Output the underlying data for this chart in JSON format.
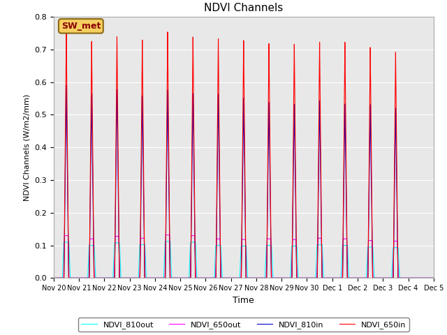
{
  "title": "NDVI Channels",
  "ylabel": "NDVI Channels (W/m2/mm)",
  "xlabel": "Time",
  "ylim": [
    0.0,
    0.8
  ],
  "bg_color": "#e8e8e8",
  "grid_color": "white",
  "annotation_text": "SW_met",
  "annotation_bg": "#f5d060",
  "annotation_border": "#8B6914",
  "series": {
    "NDVI_650in": {
      "color": "#ff0000",
      "linewidth": 0.8
    },
    "NDVI_810in": {
      "color": "#0000cc",
      "linewidth": 0.8
    },
    "NDVI_650out": {
      "color": "#ff00ff",
      "linewidth": 0.8
    },
    "NDVI_810out": {
      "color": "#00ffff",
      "linewidth": 0.8
    }
  },
  "peak_650in": [
    0.755,
    0.725,
    0.74,
    0.73,
    0.755,
    0.74,
    0.735,
    0.73,
    0.72,
    0.718,
    0.724,
    0.723,
    0.707,
    0.692
  ],
  "peak_810in": [
    0.59,
    0.565,
    0.578,
    0.558,
    0.578,
    0.566,
    0.565,
    0.554,
    0.54,
    0.533,
    0.544,
    0.534,
    0.532,
    0.52
  ],
  "peak_650out": [
    0.13,
    0.12,
    0.128,
    0.122,
    0.132,
    0.13,
    0.12,
    0.118,
    0.12,
    0.118,
    0.122,
    0.12,
    0.115,
    0.113
  ],
  "peak_810out": [
    0.11,
    0.1,
    0.108,
    0.102,
    0.112,
    0.11,
    0.1,
    0.098,
    0.1,
    0.098,
    0.102,
    0.1,
    0.095,
    0.093
  ],
  "ticks": [
    "Nov 20",
    "Nov 21",
    "Nov 22",
    "Nov 23",
    "Nov 24",
    "Nov 25",
    "Nov 26",
    "Nov 27",
    "Nov 28",
    "Nov 29",
    "Nov 30",
    "Dec 1",
    "Dec 2",
    "Dec 3",
    "Dec 4",
    "Dec 5"
  ]
}
